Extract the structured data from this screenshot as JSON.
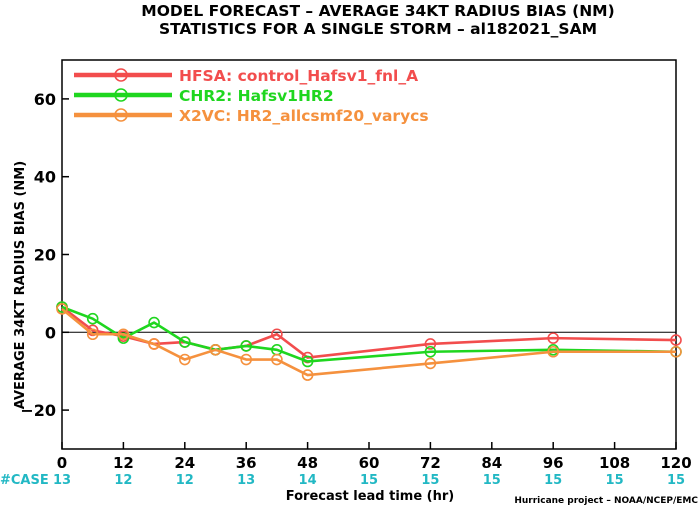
{
  "chart_data": {
    "type": "line",
    "title": "MODEL FORECAST – AVERAGE 34KT RADIUS BIAS (NM)",
    "subtitle": "STATISTICS FOR A SINGLE STORM – al182021_SAM",
    "xlabel": "Forecast lead time (hr)",
    "ylabel": "AVERAGE 34KT RADIUS BIAS (NM)",
    "xlim": [
      0,
      120
    ],
    "ylim": [
      -30,
      70
    ],
    "xticks": [
      0,
      12,
      24,
      36,
      48,
      60,
      72,
      84,
      96,
      108,
      120
    ],
    "yticks": [
      -20,
      0,
      20,
      40,
      60
    ],
    "ytick_labels": [
      "−20",
      "0",
      "20",
      "40",
      "60"
    ],
    "zero_line": true,
    "grid": false,
    "legend_position": "top-left",
    "case_label": "#CASE",
    "cases": [
      {
        "x": 0,
        "n": "13"
      },
      {
        "x": 12,
        "n": "12"
      },
      {
        "x": 24,
        "n": "12"
      },
      {
        "x": 36,
        "n": "13"
      },
      {
        "x": 48,
        "n": "14"
      },
      {
        "x": 60,
        "n": "15"
      },
      {
        "x": 72,
        "n": "15"
      },
      {
        "x": 84,
        "n": "15"
      },
      {
        "x": 96,
        "n": "15"
      },
      {
        "x": 108,
        "n": "15"
      },
      {
        "x": 120,
        "n": "15"
      }
    ],
    "credit": "Hurricane project – NOAA/NCEP/EMC",
    "series": [
      {
        "name": "HFSA: control_Hafsv1_fnl_A",
        "color": "#f24d4d",
        "x": [
          0,
          6,
          12,
          18,
          24,
          30,
          36,
          42,
          48,
          72,
          96,
          120
        ],
        "y": [
          6.5,
          0.5,
          -1,
          -3,
          -2.5,
          -4.5,
          -3.5,
          -0.5,
          -6.5,
          -3,
          -1.5,
          -2
        ]
      },
      {
        "name": "CHR2: Hafsv1HR2",
        "color": "#1fd61f",
        "x": [
          0,
          6,
          12,
          18,
          24,
          30,
          36,
          42,
          48,
          72,
          96,
          120
        ],
        "y": [
          6.5,
          3.5,
          -1.5,
          2.5,
          -2.5,
          -4.5,
          -3.5,
          -4.5,
          -7.5,
          -5,
          -4.5,
          -5
        ]
      },
      {
        "name": "X2VC: HR2_allcsmf20_varycs",
        "color": "#f5913e",
        "x": [
          0,
          6,
          12,
          18,
          24,
          30,
          36,
          42,
          48,
          72,
          96,
          120
        ],
        "y": [
          6,
          -0.5,
          -0.5,
          -3,
          -7,
          -4.5,
          -7,
          -7,
          -11,
          -8,
          -5,
          -5
        ]
      }
    ]
  }
}
